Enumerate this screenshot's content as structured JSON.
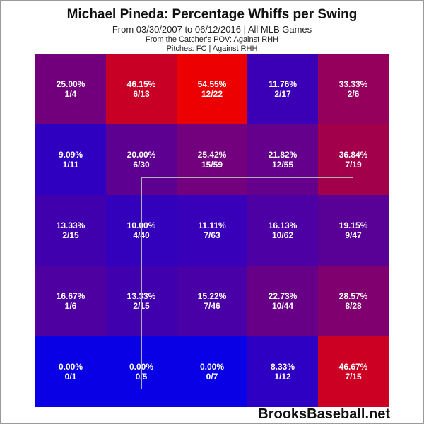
{
  "header": {
    "title": "Michael Pineda: Percentage Whiffs per Swing",
    "subtitle": "From 03/30/2007 to 06/12/2016 | All MLB Games",
    "note1": "From the Catcher's POV:  Against RHH",
    "note2": "Pitches:  FC  |  Against RHH"
  },
  "brand": "BrooksBaseball.net",
  "colors": {
    "low": "#0000ee",
    "high": "#ee0000"
  },
  "chart_data": {
    "type": "heatmap",
    "title": "Michael Pineda: Percentage Whiffs per Swing",
    "rows": 5,
    "cols": 5,
    "cells": [
      [
        {
          "pct": "25.00%",
          "count": "1/4",
          "value": 25.0
        },
        {
          "pct": "46.15%",
          "count": "6/13",
          "value": 46.15
        },
        {
          "pct": "54.55%",
          "count": "12/22",
          "value": 54.55
        },
        {
          "pct": "11.76%",
          "count": "2/17",
          "value": 11.76
        },
        {
          "pct": "33.33%",
          "count": "2/6",
          "value": 33.33
        }
      ],
      [
        {
          "pct": "9.09%",
          "count": "1/11",
          "value": 9.09
        },
        {
          "pct": "20.00%",
          "count": "6/30",
          "value": 20.0
        },
        {
          "pct": "25.42%",
          "count": "15/59",
          "value": 25.42
        },
        {
          "pct": "21.82%",
          "count": "12/55",
          "value": 21.82
        },
        {
          "pct": "36.84%",
          "count": "7/19",
          "value": 36.84
        }
      ],
      [
        {
          "pct": "13.33%",
          "count": "2/15",
          "value": 13.33
        },
        {
          "pct": "10.00%",
          "count": "4/40",
          "value": 10.0
        },
        {
          "pct": "11.11%",
          "count": "7/63",
          "value": 11.11
        },
        {
          "pct": "16.13%",
          "count": "10/62",
          "value": 16.13
        },
        {
          "pct": "19.15%",
          "count": "9/47",
          "value": 19.15
        }
      ],
      [
        {
          "pct": "16.67%",
          "count": "1/6",
          "value": 16.67
        },
        {
          "pct": "13.33%",
          "count": "2/15",
          "value": 13.33
        },
        {
          "pct": "15.22%",
          "count": "7/46",
          "value": 15.22
        },
        {
          "pct": "22.73%",
          "count": "10/44",
          "value": 22.73
        },
        {
          "pct": "28.57%",
          "count": "8/28",
          "value": 28.57
        }
      ],
      [
        {
          "pct": "0.00%",
          "count": "0/1",
          "value": 0.0
        },
        {
          "pct": "0.00%",
          "count": "0/5",
          "value": 0.0
        },
        {
          "pct": "0.00%",
          "count": "0/7",
          "value": 0.0
        },
        {
          "pct": "8.33%",
          "count": "1/12",
          "value": 8.33
        },
        {
          "pct": "46.67%",
          "count": "7/15",
          "value": 46.67
        }
      ]
    ]
  }
}
